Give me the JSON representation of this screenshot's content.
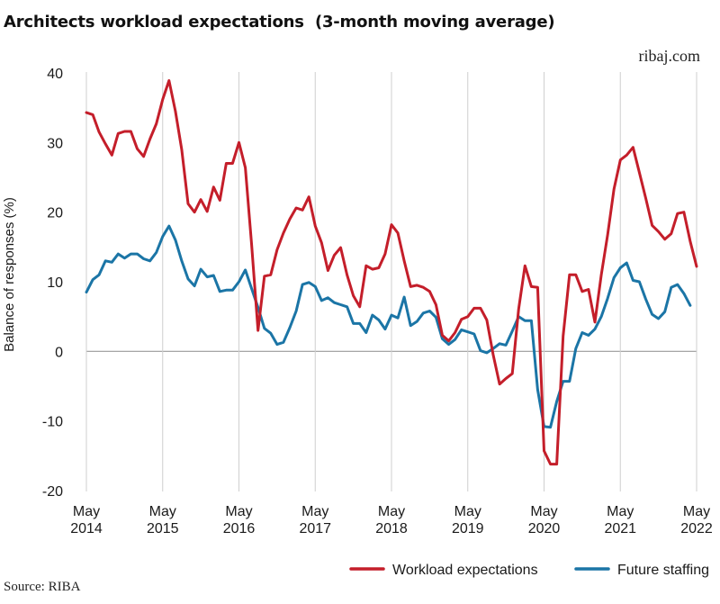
{
  "title": "Architects workload expectations  (3-month moving average)",
  "brand": "ribaj.com",
  "source": "Source: RIBA",
  "chart_data": {
    "type": "line",
    "title": "Architects workload expectations  (3-month moving average)",
    "ylabel": "Balance of responses (%)",
    "xlabel": "",
    "ylim": [
      -20,
      40
    ],
    "yticks": [
      40,
      30,
      20,
      10,
      0,
      -10,
      -20
    ],
    "xticks": [
      {
        "month": 0,
        "line1": "May",
        "line2": "2014"
      },
      {
        "month": 12,
        "line1": "May",
        "line2": "2015"
      },
      {
        "month": 24,
        "line1": "May",
        "line2": "2016"
      },
      {
        "month": 36,
        "line1": "May",
        "line2": "2017"
      },
      {
        "month": 48,
        "line1": "May",
        "line2": "2018"
      },
      {
        "month": 60,
        "line1": "May",
        "line2": "2019"
      },
      {
        "month": 72,
        "line1": "May",
        "line2": "2020"
      },
      {
        "month": 84,
        "line1": "May",
        "line2": "2021"
      },
      {
        "month": 96,
        "line1": "May",
        "line2": "2022"
      }
    ],
    "x_start": "May 2014",
    "x_step": "1 month",
    "grid": "zero line only",
    "legend_position": "bottom-right",
    "series": [
      {
        "name": "Workload expectations",
        "color": "#c41e2a",
        "values": [
          34.3,
          34,
          31.5,
          29.8,
          28.2,
          31.3,
          31.6,
          31.6,
          29.1,
          28,
          30.5,
          32.7,
          36.2,
          38.9,
          34.5,
          29,
          21.2,
          20,
          21.8,
          20.1,
          23.6,
          21.7,
          27,
          27,
          30,
          26.4,
          15.3,
          3,
          10.8,
          11,
          14.6,
          17,
          19,
          20.6,
          20.3,
          22.2,
          18,
          15.6,
          11.6,
          13.8,
          14.9,
          11,
          8,
          6.4,
          12.3,
          11.8,
          12,
          14,
          18.2,
          17,
          13,
          9.3,
          9.5,
          9.2,
          8.6,
          6.7,
          2.3,
          1.5,
          2.7,
          4.6,
          5,
          6.2,
          6.2,
          4.5,
          -0.5,
          -4.7,
          -3.9,
          -3.2,
          6.1,
          12.3,
          9.3,
          9.2,
          -14.3,
          -16.2,
          -16.2,
          2.2,
          11,
          11,
          8.6,
          8.9,
          4.2,
          11,
          16.7,
          23.3,
          27.5,
          28.2,
          29.3,
          25.7,
          22,
          18.1,
          17.2,
          16.1,
          16.9,
          19.8,
          20,
          15.8,
          12.2
        ]
      },
      {
        "name": "Future staffing",
        "color": "#1b75a6",
        "values": [
          8.5,
          10.3,
          11,
          13,
          12.8,
          14,
          13.4,
          14,
          14,
          13.3,
          13,
          14.2,
          16.5,
          18,
          16,
          13,
          10.4,
          9.4,
          11.8,
          10.7,
          10.9,
          8.6,
          8.8,
          8.8,
          10,
          11.7,
          9,
          6.3,
          3.3,
          2.6,
          1,
          1.3,
          3.4,
          5.8,
          9.6,
          9.9,
          9.3,
          7.3,
          7.7,
          7,
          6.7,
          6.4,
          4,
          4,
          2.7,
          5.2,
          4.5,
          3.2,
          5.2,
          4.8,
          7.8,
          3.7,
          4.3,
          5.5,
          5.8,
          4.9,
          1.8,
          1,
          1.7,
          3.1,
          2.8,
          2.5,
          0.1,
          -0.2,
          0.4,
          1.1,
          0.9,
          2.9,
          5,
          4.4,
          4.4,
          -5.5,
          -10.8,
          -10.9,
          -7.2,
          -4.3,
          -4.3,
          0.4,
          2.7,
          2.3,
          3.2,
          5,
          7.6,
          10.6,
          12,
          12.7,
          10.2,
          10,
          7.5,
          5.3,
          4.7,
          5.7,
          9.2,
          9.6,
          8.3,
          6.6
        ]
      }
    ]
  }
}
